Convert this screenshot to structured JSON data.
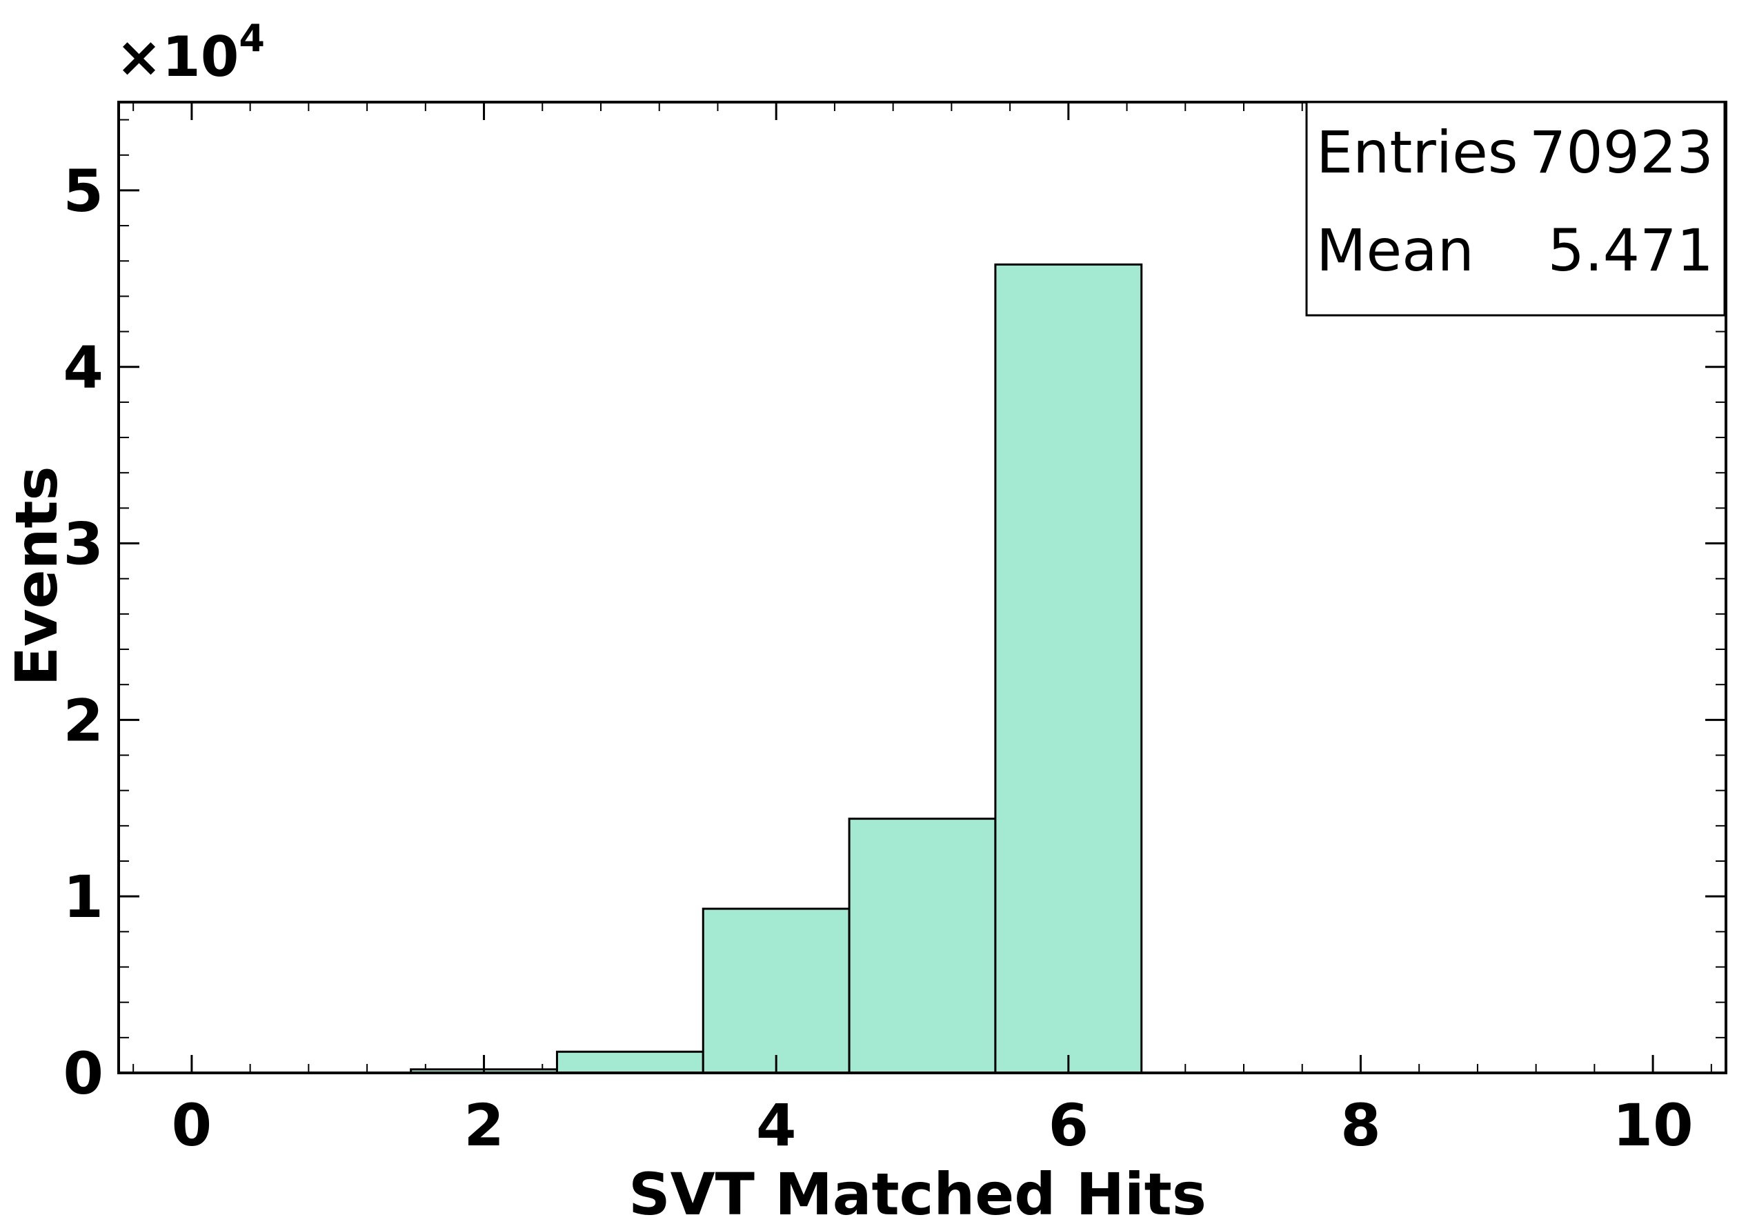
{
  "chart_data": {
    "type": "bar",
    "xlabel": "SVT Matched Hits",
    "ylabel": "Events",
    "y_scale_label": {
      "base": "×10",
      "exponent": "4"
    },
    "xlim": [
      -0.5,
      10.5
    ],
    "ylim": [
      0,
      5.5
    ],
    "x_ticks": [
      "0",
      "2",
      "4",
      "6",
      "8",
      "10"
    ],
    "y_ticks": [
      "0",
      "1",
      "2",
      "3",
      "4",
      "5"
    ],
    "bins": [
      {
        "center": 2,
        "value": 0.02
      },
      {
        "center": 3,
        "value": 0.12
      },
      {
        "center": 4,
        "value": 0.93
      },
      {
        "center": 5,
        "value": 1.44
      },
      {
        "center": 6,
        "value": 4.58
      }
    ],
    "fill_color": "#a4ead3",
    "stats": {
      "entries_label": "Entries",
      "entries_value": "70923",
      "mean_label": "Mean",
      "mean_value": "5.471"
    }
  }
}
